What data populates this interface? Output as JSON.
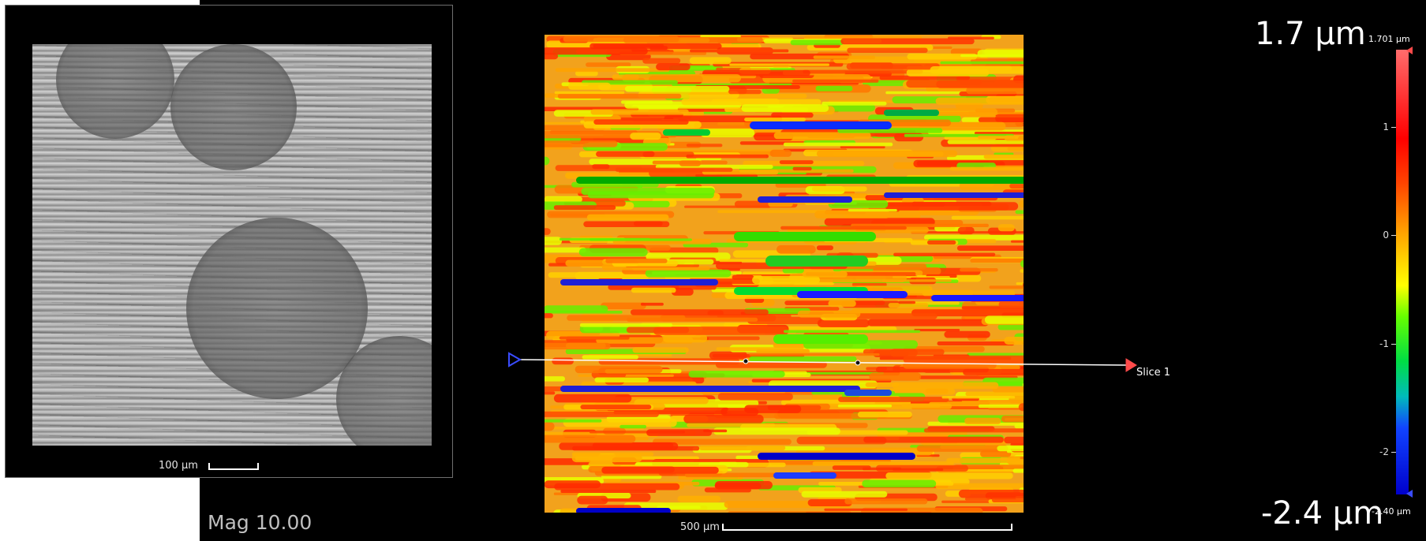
{
  "optical": {
    "scale_label": "100 µm"
  },
  "footer": {
    "mag_label": "Mag 10.00"
  },
  "height_map": {
    "scale_label": "500 µm",
    "slice_label": "Slice 1"
  },
  "colorbar": {
    "max_overlay": "1.7 µm",
    "min_overlay": "-2.4 µm",
    "max_small": "1.701 µm",
    "min_small": "-2.40 µm",
    "ticks": [
      "1",
      "0",
      "-1",
      "-2"
    ]
  },
  "colors": {
    "slice_start_marker": "#3a4cff",
    "slice_end_marker": "#ff4a4a",
    "background": "#000000"
  }
}
